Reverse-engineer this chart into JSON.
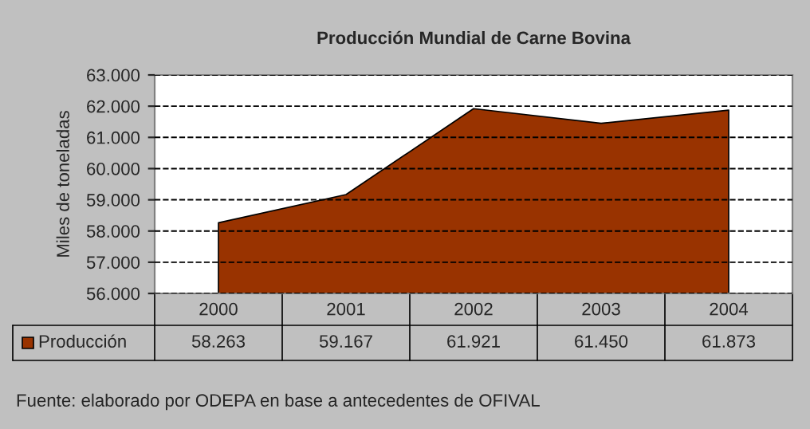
{
  "chart_data": {
    "type": "area",
    "title": "Producción Mundial de Carne Bovina",
    "ylabel": "Miles de toneladas",
    "categories": [
      "2000",
      "2001",
      "2002",
      "2003",
      "2004"
    ],
    "series": [
      {
        "name": "Producción",
        "color": "#993300",
        "values": [
          58263,
          59167,
          61921,
          61450,
          61873
        ],
        "value_labels": [
          "58.263",
          "59.167",
          "61.921",
          "61.450",
          "61.873"
        ]
      }
    ],
    "ylim": [
      56000,
      63000
    ],
    "yticks": [
      {
        "value": 56000,
        "label": "56.000"
      },
      {
        "value": 57000,
        "label": "57.000"
      },
      {
        "value": 58000,
        "label": "58.000"
      },
      {
        "value": 59000,
        "label": "59.000"
      },
      {
        "value": 60000,
        "label": "60.000"
      },
      {
        "value": 61000,
        "label": "61.000"
      },
      {
        "value": 62000,
        "label": "62.000"
      },
      {
        "value": 63000,
        "label": "63.000"
      }
    ],
    "grid": "y",
    "line_style": "dashed",
    "legend": "bottom left",
    "annotations": [
      "Fuente: elaborado por ODEPA en base a antecedentes de OFIVAL"
    ]
  }
}
